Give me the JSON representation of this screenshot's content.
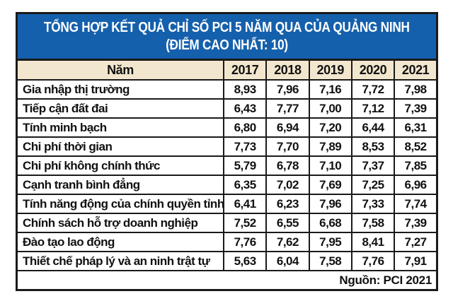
{
  "title": {
    "line1": "TỔNG HỢP KẾT QUẢ CHỈ SỐ PCI 5 NĂM QUA CỦA QUẢNG NINH",
    "line2": "(ĐIỂM CAO NHẤT: 10)"
  },
  "table": {
    "header": [
      "Năm",
      "2017",
      "2018",
      "2019",
      "2020",
      "2021"
    ],
    "rows": [
      {
        "label": "Gia nhập thị trường",
        "values": [
          "8,93",
          "7,96",
          "7,16",
          "7,72",
          "7,98"
        ]
      },
      {
        "label": "Tiếp cận đất đai",
        "values": [
          "6,43",
          "7,77",
          "7,00",
          "7,12",
          "7,39"
        ]
      },
      {
        "label": "Tính minh bạch",
        "values": [
          "6,80",
          "6,94",
          "7,20",
          "6,44",
          "6,31"
        ]
      },
      {
        "label": "Chi phí thời gian",
        "values": [
          "7,73",
          "7,70",
          "7,89",
          "8,53",
          "8,52"
        ]
      },
      {
        "label": "Chi phí không chính thức",
        "values": [
          "5,79",
          "6,78",
          "7,10",
          "7,37",
          "7,85"
        ]
      },
      {
        "label": "Cạnh tranh bình đẳng",
        "values": [
          "6,35",
          "7,02",
          "7,69",
          "7,25",
          "6,96"
        ]
      },
      {
        "label": "Tính năng động của chính quyền tỉnh",
        "values": [
          "6,41",
          "6,23",
          "7,96",
          "7,33",
          "7,74"
        ]
      },
      {
        "label": "Chính sách hỗ trợ doanh nghiệp",
        "values": [
          "7,52",
          "6,55",
          "6,68",
          "7,58",
          "7,39"
        ]
      },
      {
        "label": "Đào tạo lao động",
        "values": [
          "7,76",
          "7,62",
          "7,95",
          "8,41",
          "7,27"
        ]
      },
      {
        "label": "Thiết chế pháp lý và an ninh trật tự",
        "values": [
          "5,63",
          "6,04",
          "7,58",
          "7,76",
          "7,91"
        ]
      }
    ],
    "source": "Nguồn: PCI 2021"
  },
  "colors": {
    "title_bg": "#1560AC",
    "header_row_bg": "#F2E7CE",
    "border": "#1A1A1A",
    "title_text": "#FFFFFF"
  },
  "chart_data": {
    "type": "table",
    "title": "TỔNG HỢP KẾT QUẢ CHỈ SỐ PCI 5 NĂM QUA CỦA QUẢNG NINH (ĐIỂM CAO NHẤT: 10)",
    "categories": [
      "2017",
      "2018",
      "2019",
      "2020",
      "2021"
    ],
    "series": [
      {
        "name": "Gia nhập thị trường",
        "values": [
          8.93,
          7.96,
          7.16,
          7.72,
          7.98
        ]
      },
      {
        "name": "Tiếp cận đất đai",
        "values": [
          6.43,
          7.77,
          7.0,
          7.12,
          7.39
        ]
      },
      {
        "name": "Tính minh bạch",
        "values": [
          6.8,
          6.94,
          7.2,
          6.44,
          6.31
        ]
      },
      {
        "name": "Chi phí thời gian",
        "values": [
          7.73,
          7.7,
          7.89,
          8.53,
          8.52
        ]
      },
      {
        "name": "Chi phí không chính thức",
        "values": [
          5.79,
          6.78,
          7.1,
          7.37,
          7.85
        ]
      },
      {
        "name": "Cạnh tranh bình đẳng",
        "values": [
          6.35,
          7.02,
          7.69,
          7.25,
          6.96
        ]
      },
      {
        "name": "Tính năng động của chính quyền tỉnh",
        "values": [
          6.41,
          6.23,
          7.96,
          7.33,
          7.74
        ]
      },
      {
        "name": "Chính sách hỗ trợ doanh nghiệp",
        "values": [
          7.52,
          6.55,
          6.68,
          7.58,
          7.39
        ]
      },
      {
        "name": "Đào tạo lao động",
        "values": [
          7.76,
          7.62,
          7.95,
          8.41,
          7.27
        ]
      },
      {
        "name": "Thiết chế pháp lý và an ninh trật tự",
        "values": [
          5.63,
          6.04,
          7.58,
          7.76,
          7.91
        ]
      }
    ],
    "value_range": [
      0,
      10
    ],
    "source": "Nguồn: PCI 2021"
  }
}
